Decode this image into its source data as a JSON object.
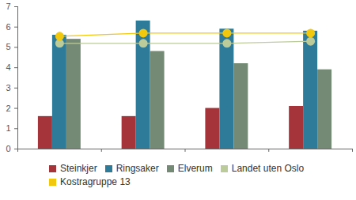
{
  "chart_data": {
    "type": "bar",
    "categories": [
      null,
      null,
      null,
      null
    ],
    "series": [
      {
        "name": "Steinkjer",
        "type": "bar",
        "color": "#a4343a",
        "values": [
          1.6,
          1.6,
          2.0,
          2.1
        ]
      },
      {
        "name": "Ringsaker",
        "type": "bar",
        "color": "#2e7a99",
        "values": [
          5.6,
          6.3,
          5.9,
          5.8
        ]
      },
      {
        "name": "Elverum",
        "type": "bar",
        "color": "#748a74",
        "values": [
          5.4,
          4.8,
          4.2,
          3.9
        ]
      },
      {
        "name": "Landet uten Oslo",
        "type": "line",
        "marker": "circle",
        "color": "#bccb9a",
        "values": [
          5.2,
          5.2,
          5.2,
          5.3
        ]
      },
      {
        "name": "Kostragruppe 13",
        "type": "line",
        "marker": "circle",
        "color": "#f2c80f",
        "values": [
          5.55,
          5.7,
          5.7,
          5.7
        ]
      }
    ],
    "ylim": [
      0,
      7
    ],
    "yticks": [
      0,
      1,
      2,
      3,
      4,
      5,
      6,
      7
    ],
    "grid": false,
    "legend": "bottom"
  }
}
